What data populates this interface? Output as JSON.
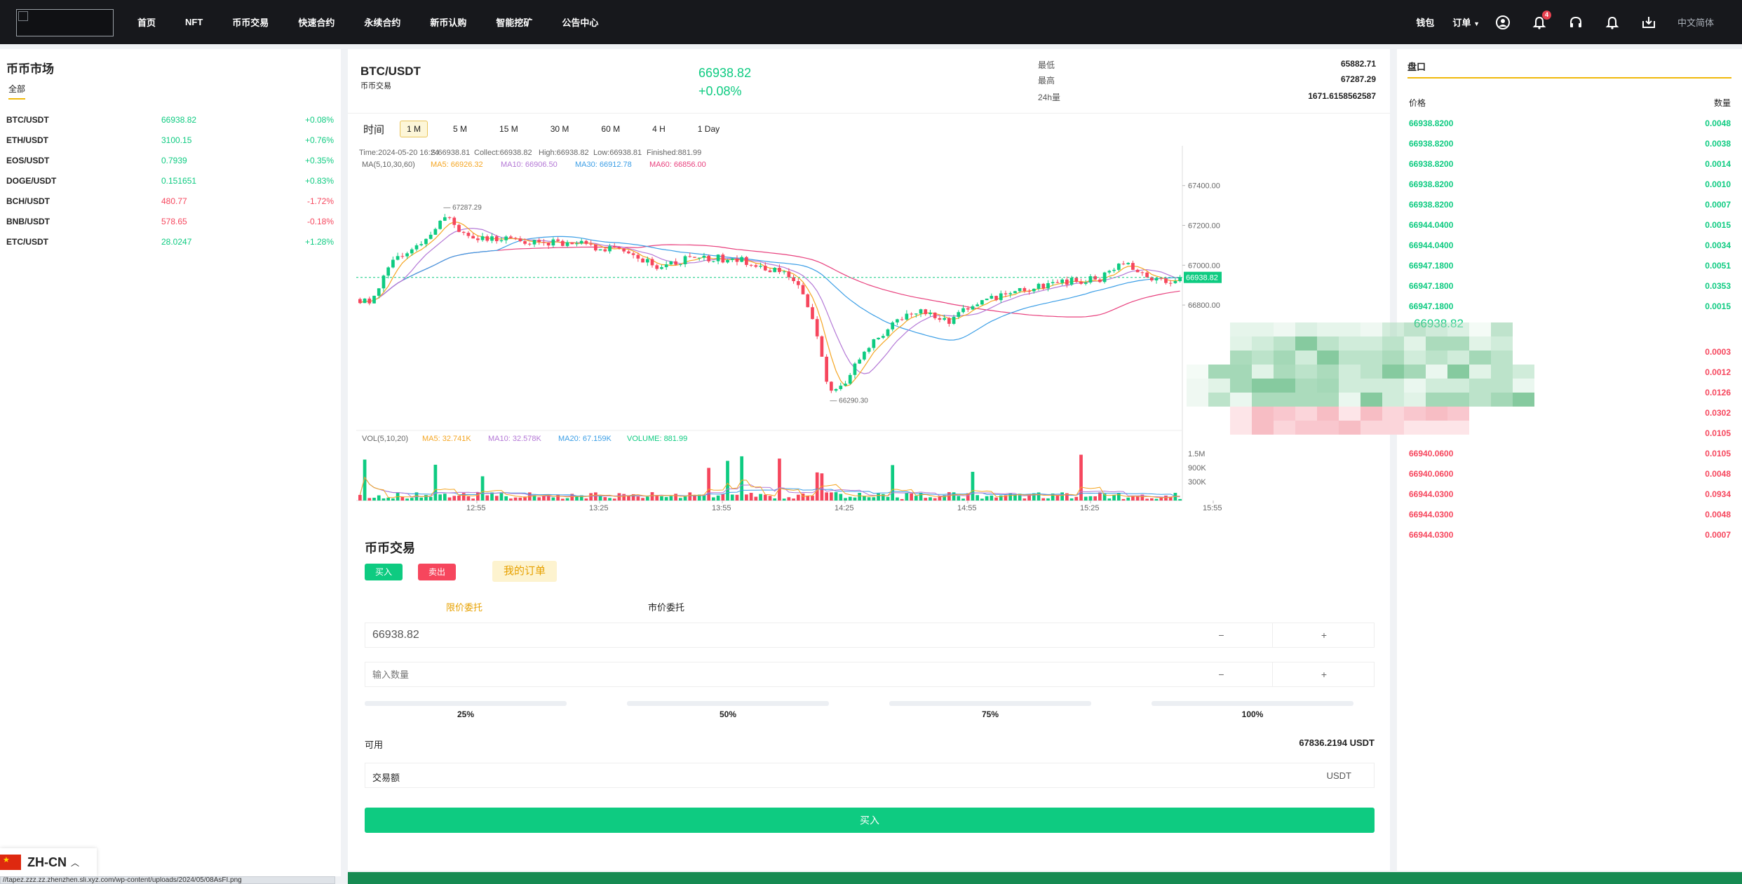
{
  "nav": {
    "items": [
      "首页",
      "NFT",
      "币币交易",
      "快速合约",
      "永续合约",
      "新币认购",
      "智能挖矿",
      "公告中心"
    ],
    "wallet": "钱包",
    "orders": "订单",
    "notifications_count": "4",
    "language": "中文简体"
  },
  "market": {
    "title": "币币市场",
    "tab_all": "全部",
    "rows": [
      {
        "symbol": "BTC/USDT",
        "price": "66938.82",
        "change": "+0.08%",
        "dir": "up"
      },
      {
        "symbol": "ETH/USDT",
        "price": "3100.15",
        "change": "+0.76%",
        "dir": "up"
      },
      {
        "symbol": "EOS/USDT",
        "price": "0.7939",
        "change": "+0.35%",
        "dir": "up"
      },
      {
        "symbol": "DOGE/USDT",
        "price": "0.151651",
        "change": "+0.83%",
        "dir": "up"
      },
      {
        "symbol": "BCH/USDT",
        "price": "480.77",
        "change": "-1.72%",
        "dir": "dn"
      },
      {
        "symbol": "BNB/USDT",
        "price": "578.65",
        "change": "-0.18%",
        "dir": "dn"
      },
      {
        "symbol": "ETC/USDT",
        "price": "28.0247",
        "change": "+1.28%",
        "dir": "up"
      }
    ]
  },
  "ticker": {
    "pair": "BTC/USDT",
    "subtitle": "币币交易",
    "price": "66938.82",
    "change": "+0.08%",
    "low_label": "最低",
    "low": "65882.71",
    "high_label": "最高",
    "high": "67287.29",
    "vol_label": "24h量",
    "vol": "1671.6158562587"
  },
  "chart": {
    "tf_label": "时间",
    "timeframes": [
      "1 M",
      "5 M",
      "15 M",
      "30 M",
      "60 M",
      "4 H",
      "1 Day"
    ],
    "active_tf": "1 M",
    "info": {
      "time": "Time:2024-05-20 16:24",
      "s": "S:66938.81",
      "collect": "Collect:66938.82",
      "high": "High:66938.82",
      "low": "Low:66938.81",
      "finished": "Finished:881.99"
    },
    "ma_title": "MA(5,10,30,60)",
    "ma5": "MA5: 66926.32",
    "ma10": "MA10: 66906.50",
    "ma30": "MA30: 66912.78",
    "ma60": "MA60: 66856.00",
    "vol_title": "VOL(5,10,20)",
    "vma5": "MA5: 32.741K",
    "vma10": "MA10: 32.578K",
    "vma20": "MA20: 67.159K",
    "volume": "VOLUME: 881.99",
    "y_ticks": [
      "67400.00",
      "67200.00",
      "67000.00",
      "66800.00"
    ],
    "vol_ticks": [
      "1.5M",
      "900K",
      "300K"
    ],
    "x_ticks": [
      "12:55",
      "13:25",
      "13:55",
      "14:25",
      "14:55",
      "15:25",
      "15:55"
    ],
    "max_label": "67287.29",
    "min_label": "66290.30",
    "last_label": "66938.82",
    "colors": {
      "up": "#0ecb81",
      "down": "#f6465d",
      "ma5": "#f5a623",
      "ma10": "#b478d6",
      "ma30": "#3b9ee6",
      "ma60": "#e8417e"
    }
  },
  "trade": {
    "title": "币币交易",
    "buy_tab": "买入",
    "sell_tab": "卖出",
    "my_orders": "我的订单",
    "limit_tab": "限价委托",
    "market_tab": "市价委托",
    "price_value": "66938.82",
    "qty_placeholder": "输入数量",
    "minus": "−",
    "plus": "+",
    "pcts": [
      "25%",
      "50%",
      "75%",
      "100%"
    ],
    "avail_label": "可用",
    "avail_value": "67836.2194 USDT",
    "amount_label": "交易额",
    "amount_unit": "USDT",
    "submit": "买入"
  },
  "book": {
    "title": "盘口",
    "price_header": "价格",
    "qty_header": "数量",
    "asks": [
      {
        "price": "66938.8200",
        "qty": "0.0048"
      },
      {
        "price": "66938.8200",
        "qty": "0.0038"
      },
      {
        "price": "66938.8200",
        "qty": "0.0014"
      },
      {
        "price": "66938.8200",
        "qty": "0.0010"
      },
      {
        "price": "66938.8200",
        "qty": "0.0007"
      },
      {
        "price": "66944.0400",
        "qty": "0.0015"
      },
      {
        "price": "66944.0400",
        "qty": "0.0034"
      },
      {
        "price": "66947.1800",
        "qty": "0.0051"
      },
      {
        "price": "66947.1800",
        "qty": "0.0353"
      },
      {
        "price": "66947.1800",
        "qty": "0.0015"
      }
    ],
    "mid_price": "66938.82",
    "bids_qty_top": [
      "0.0003",
      "0.0012",
      "0.0126",
      "0.0302",
      "0.0105"
    ],
    "bids": [
      {
        "price": "66940.0600",
        "qty": "0.0105"
      },
      {
        "price": "66940.0600",
        "qty": "0.0048"
      },
      {
        "price": "66944.0300",
        "qty": "0.0934"
      },
      {
        "price": "66944.0300",
        "qty": "0.0048"
      },
      {
        "price": "66944.0300",
        "qty": "0.0007"
      }
    ]
  },
  "footer": {
    "lang": "ZH-CN",
    "status_url": "//tapez.zzz.zz.zhenzhen.sli.xyz.com/wp-content/uploads/2024/05/08AsFI.png"
  }
}
